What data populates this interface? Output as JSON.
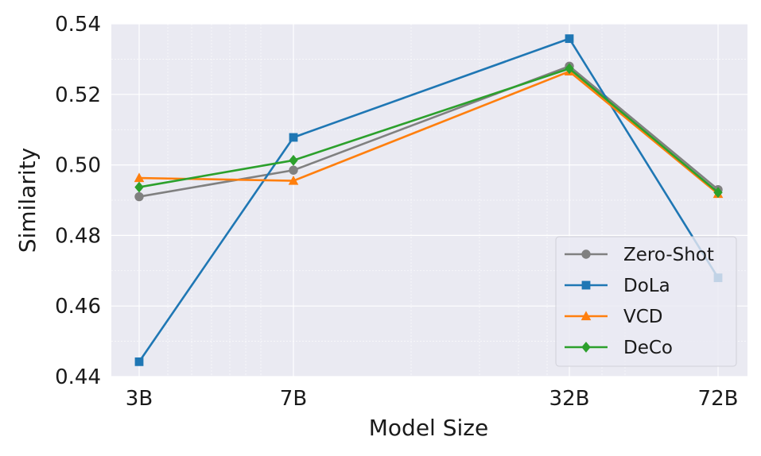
{
  "chart_data": {
    "type": "line",
    "xlabel": "Model Size",
    "ylabel": "Similarity",
    "categories": [
      "3B",
      "7B",
      "32B",
      "72B"
    ],
    "x_positions": [
      3,
      7,
      32,
      72
    ],
    "x_scale": "log",
    "ylim": [
      0.44,
      0.54
    ],
    "yticks": [
      "0.44",
      "0.46",
      "0.48",
      "0.50",
      "0.52",
      "0.54"
    ],
    "grid": true,
    "legend_position": "lower-right",
    "series": [
      {
        "name": "Zero-Shot",
        "values": [
          0.491,
          0.4985,
          0.528,
          0.493
        ],
        "color": "#808080",
        "marker": "circle"
      },
      {
        "name": "DoLa",
        "values": [
          0.4442,
          0.5078,
          0.5358,
          0.468
        ],
        "color": "#1f77b4",
        "marker": "square"
      },
      {
        "name": "VCD",
        "values": [
          0.4963,
          0.4955,
          0.5265,
          0.4918
        ],
        "color": "#ff7f0e",
        "marker": "triangle"
      },
      {
        "name": "DeCo",
        "values": [
          0.4937,
          0.5013,
          0.5273,
          0.4922
        ],
        "color": "#2ca02c",
        "marker": "diamond"
      }
    ]
  }
}
